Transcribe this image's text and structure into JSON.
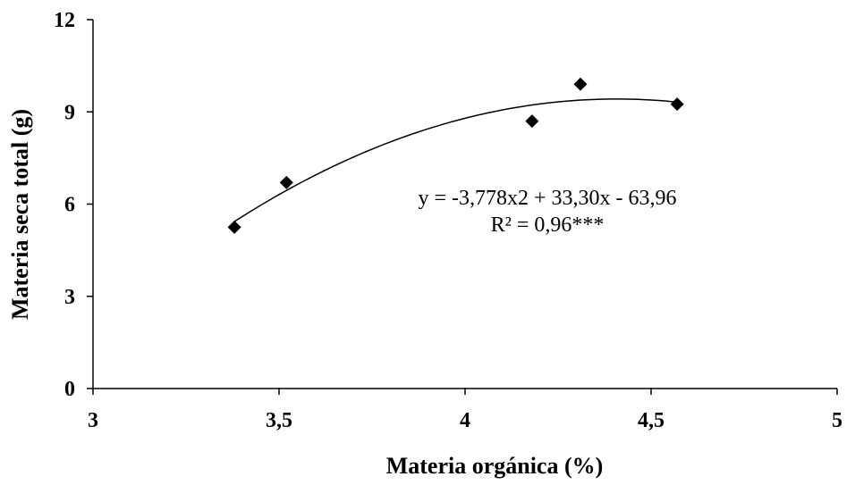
{
  "chart_data": {
    "type": "scatter",
    "xlabel": "Materia orgánica (%)",
    "ylabel": "Materia seca total (g)",
    "xlim": [
      3,
      5
    ],
    "ylim": [
      0,
      12
    ],
    "x_ticks": [
      3,
      3.5,
      4,
      4.5,
      5
    ],
    "x_tick_labels": [
      "3",
      "3,5",
      "4",
      "4,5",
      "5"
    ],
    "y_ticks": [
      0,
      3,
      6,
      9,
      12
    ],
    "y_tick_labels": [
      "0",
      "3",
      "6",
      "9",
      "12"
    ],
    "grid": false,
    "legend": "none",
    "series": [
      {
        "marker": "diamond",
        "color": "#000000",
        "points": [
          {
            "x": 3.38,
            "y": 5.25
          },
          {
            "x": 3.52,
            "y": 6.7
          },
          {
            "x": 4.18,
            "y": 8.7
          },
          {
            "x": 4.31,
            "y": 9.9
          },
          {
            "x": 4.57,
            "y": 9.25
          }
        ]
      }
    ],
    "trendline": {
      "type": "polynomial",
      "order": 2,
      "coefficients": [
        -3.778,
        33.3,
        -63.96
      ],
      "x_range": [
        3.38,
        4.57
      ],
      "color": "#000000"
    },
    "annotations": {
      "equation": "y = -3,778x2 + 33,30x - 63,96",
      "r_squared": "R² = 0,96***"
    }
  }
}
